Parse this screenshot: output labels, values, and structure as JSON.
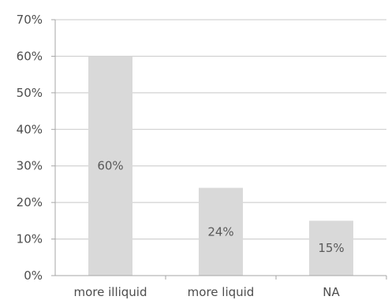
{
  "chart_data": {
    "type": "bar",
    "categories": [
      "more illiquid",
      "more liquid",
      "NA"
    ],
    "values": [
      60,
      24,
      15
    ],
    "data_labels": [
      "60%",
      "24%",
      "15%"
    ],
    "ylim": [
      0,
      70
    ],
    "yticks": [
      0,
      10,
      20,
      30,
      40,
      50,
      60,
      70
    ],
    "ytick_labels": [
      "0%",
      "10%",
      "20%",
      "30%",
      "40%",
      "50%",
      "60%",
      "70%"
    ],
    "grid": true,
    "legend": "none",
    "title": "",
    "xlabel": "",
    "ylabel": "",
    "bar_color": "#d9d9d9"
  }
}
